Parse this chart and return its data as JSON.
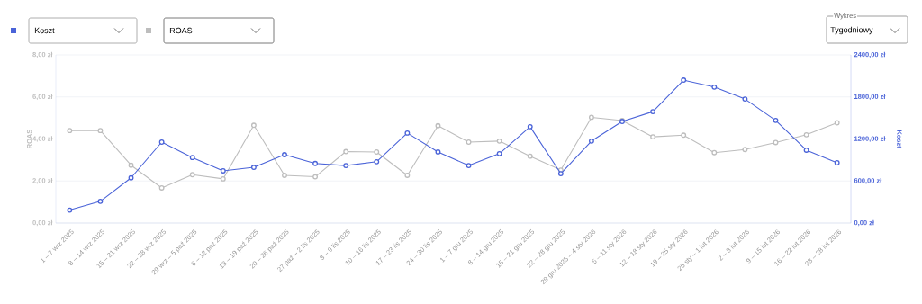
{
  "chart_data": {
    "type": "line",
    "categories": [
      "1 – 7 wrz 2025",
      "8 – 14 wrz 2025",
      "15 – 21 wrz 2025",
      "22 – 28 wrz 2025",
      "29 wrz – 5 paź 2025",
      "6 – 12 paź 2025",
      "13 – 19 paź 2025",
      "20 – 26 paź 2025",
      "27 paź – 2 lis 2025",
      "3 – 9 lis 2025",
      "10 – 16 lis 2025",
      "17 – 23 lis 2025",
      "24 – 30 lis 2025",
      "1 – 7 gru 2025",
      "8 – 14 gru 2025",
      "15 – 21 gru 2025",
      "22 – 28 gru 2025",
      "29 gru 2025 – 4 sty 2026",
      "5 – 11 sty 2026",
      "12 – 18 sty 2026",
      "19 – 25 sty 2026",
      "26 sty – 1 lut 2026",
      "2 – 8 lut 2026",
      "9 – 15 lut 2026",
      "16 – 22 lut 2026",
      "23 – 28 lut 2026"
    ],
    "series": [
      {
        "name": "Koszt",
        "color": "#4a63d8",
        "axis": "y2",
        "values": [
          185,
          310,
          645,
          1155,
          935,
          745,
          795,
          975,
          850,
          820,
          875,
          1285,
          1015,
          820,
          990,
          1375,
          705,
          1170,
          1450,
          1590,
          2040,
          1940,
          1770,
          1465,
          1040,
          860
        ]
      },
      {
        "name": "ROAS",
        "color": "#bdbdbd",
        "axis": "y",
        "values": [
          4.4,
          4.4,
          2.75,
          1.67,
          2.3,
          2.1,
          4.65,
          2.27,
          2.2,
          3.4,
          3.38,
          2.27,
          4.63,
          3.85,
          3.9,
          3.18,
          2.52,
          5.03,
          4.88,
          4.1,
          4.18,
          3.35,
          3.5,
          3.83,
          4.2,
          4.77
        ]
      }
    ],
    "ylabel": "ROAS",
    "y2label": "Koszt",
    "ylim": [
      0,
      8
    ],
    "yticks": [
      {
        "value": 0,
        "label": "0,00 zł"
      },
      {
        "value": 2,
        "label": "2,00 zł"
      },
      {
        "value": 4,
        "label": "4,00 zł"
      },
      {
        "value": 6,
        "label": "6,00 zł"
      },
      {
        "value": 8,
        "label": "8,00 zł"
      }
    ],
    "y2lim": [
      0,
      2400
    ],
    "y2ticks": [
      {
        "value": 0,
        "label": "0,00 zł"
      },
      {
        "value": 600,
        "label": "600,00 zł"
      },
      {
        "value": 1200,
        "label": "1200,00 zł"
      },
      {
        "value": 1800,
        "label": "1800,00 zł"
      },
      {
        "value": 2400,
        "label": "2400,00 zł"
      }
    ],
    "grid": "y",
    "legend": "top left",
    "marker": "circle",
    "line_style": "solid",
    "annotations": [
      "Wykres",
      "Tygodniowy"
    ]
  }
}
